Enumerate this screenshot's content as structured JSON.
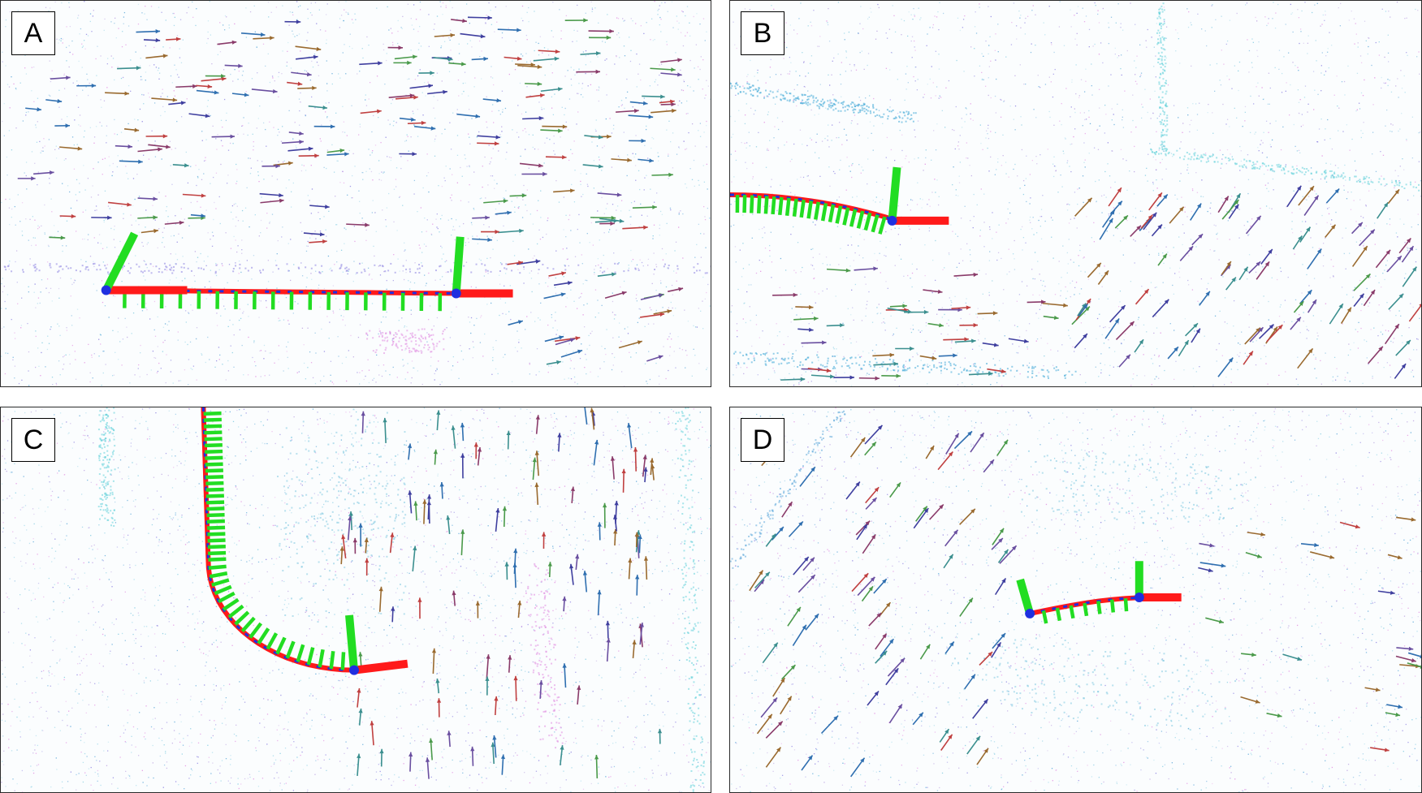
{
  "panels": [
    {
      "id": "a",
      "label": "A"
    },
    {
      "id": "b",
      "label": "B"
    },
    {
      "id": "c",
      "label": "C"
    },
    {
      "id": "d",
      "label": "D"
    }
  ],
  "colors": {
    "point_cloud": [
      "#9fd8ea",
      "#7fc9e0",
      "#5aa6d8",
      "#b9a0e0",
      "#e08be0",
      "#8a7fe0"
    ],
    "axis_x": "#ff1a1a",
    "axis_y": "#22dd22",
    "axis_origin": "#1f2fe0",
    "trajectory_dashes": "#1f2fe0",
    "arrows": [
      "#3b8f8f",
      "#6a4fa0",
      "#4a9a4a",
      "#8a3b6a",
      "#2f6fb0",
      "#9a6a2f",
      "#3f3f9f",
      "#c04040"
    ]
  },
  "icons": [
    "pose-axis-icon",
    "velocity-arrow-icon"
  ]
}
